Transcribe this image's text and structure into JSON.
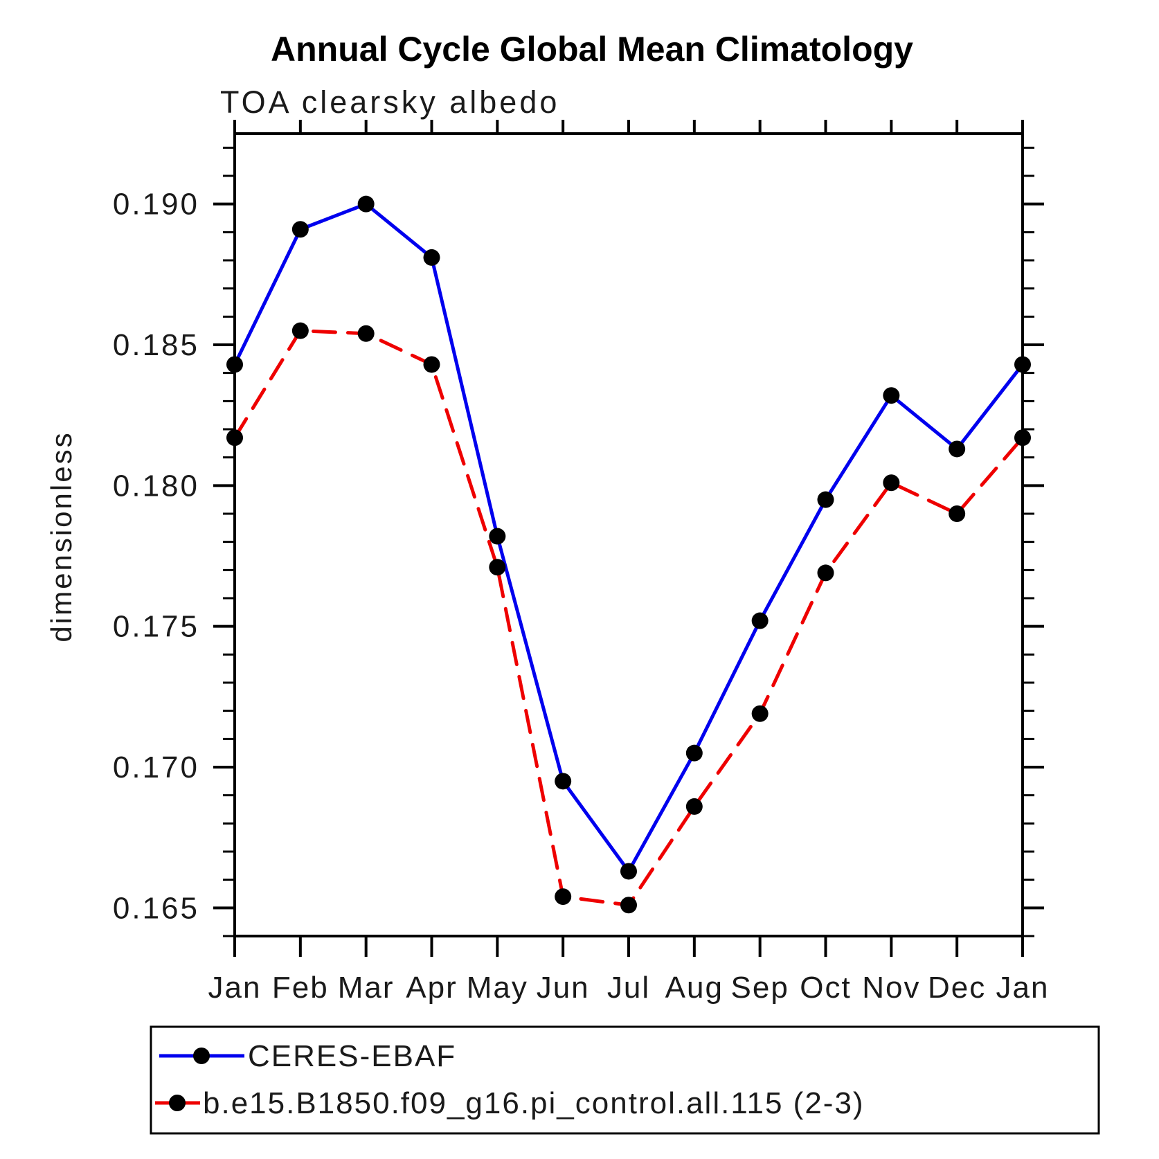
{
  "title": "Annual Cycle Global Mean Climatology",
  "subtitle": "TOA clearsky albedo",
  "chart_data": {
    "type": "line",
    "categories": [
      "Jan",
      "Feb",
      "Mar",
      "Apr",
      "May",
      "Jun",
      "Jul",
      "Aug",
      "Sep",
      "Oct",
      "Nov",
      "Dec",
      "Jan"
    ],
    "series": [
      {
        "name": "CERES-EBAF",
        "line_color": "#0000ee",
        "line_style": "solid",
        "marker_color": "#000000",
        "values": [
          0.1843,
          0.1891,
          0.19,
          0.1881,
          0.1782,
          0.1695,
          0.1663,
          0.1705,
          0.1752,
          0.1795,
          0.1832,
          0.1813,
          0.1843
        ]
      },
      {
        "name": "b.e15.B1850.f09_g16.pi_control.all.115 (2-3)",
        "line_color": "#ee0000",
        "line_style": "dashed",
        "marker_color": "#000000",
        "values": [
          0.1817,
          0.1855,
          0.1854,
          0.1843,
          0.1771,
          0.1654,
          0.1651,
          0.1686,
          0.1719,
          0.1769,
          0.1801,
          0.179,
          0.1817
        ]
      }
    ],
    "xlabel": "",
    "ylabel": "dimensionless",
    "ylim": [
      0.164,
      0.1925
    ],
    "yticks_major": [
      0.165,
      0.17,
      0.175,
      0.18,
      0.185,
      0.19
    ],
    "ytick_labels": [
      "0.165",
      "0.170",
      "0.175",
      "0.180",
      "0.185",
      "0.190"
    ],
    "ytick_minor_step": 0.001,
    "grid": "off",
    "legend_position": "bottom"
  }
}
